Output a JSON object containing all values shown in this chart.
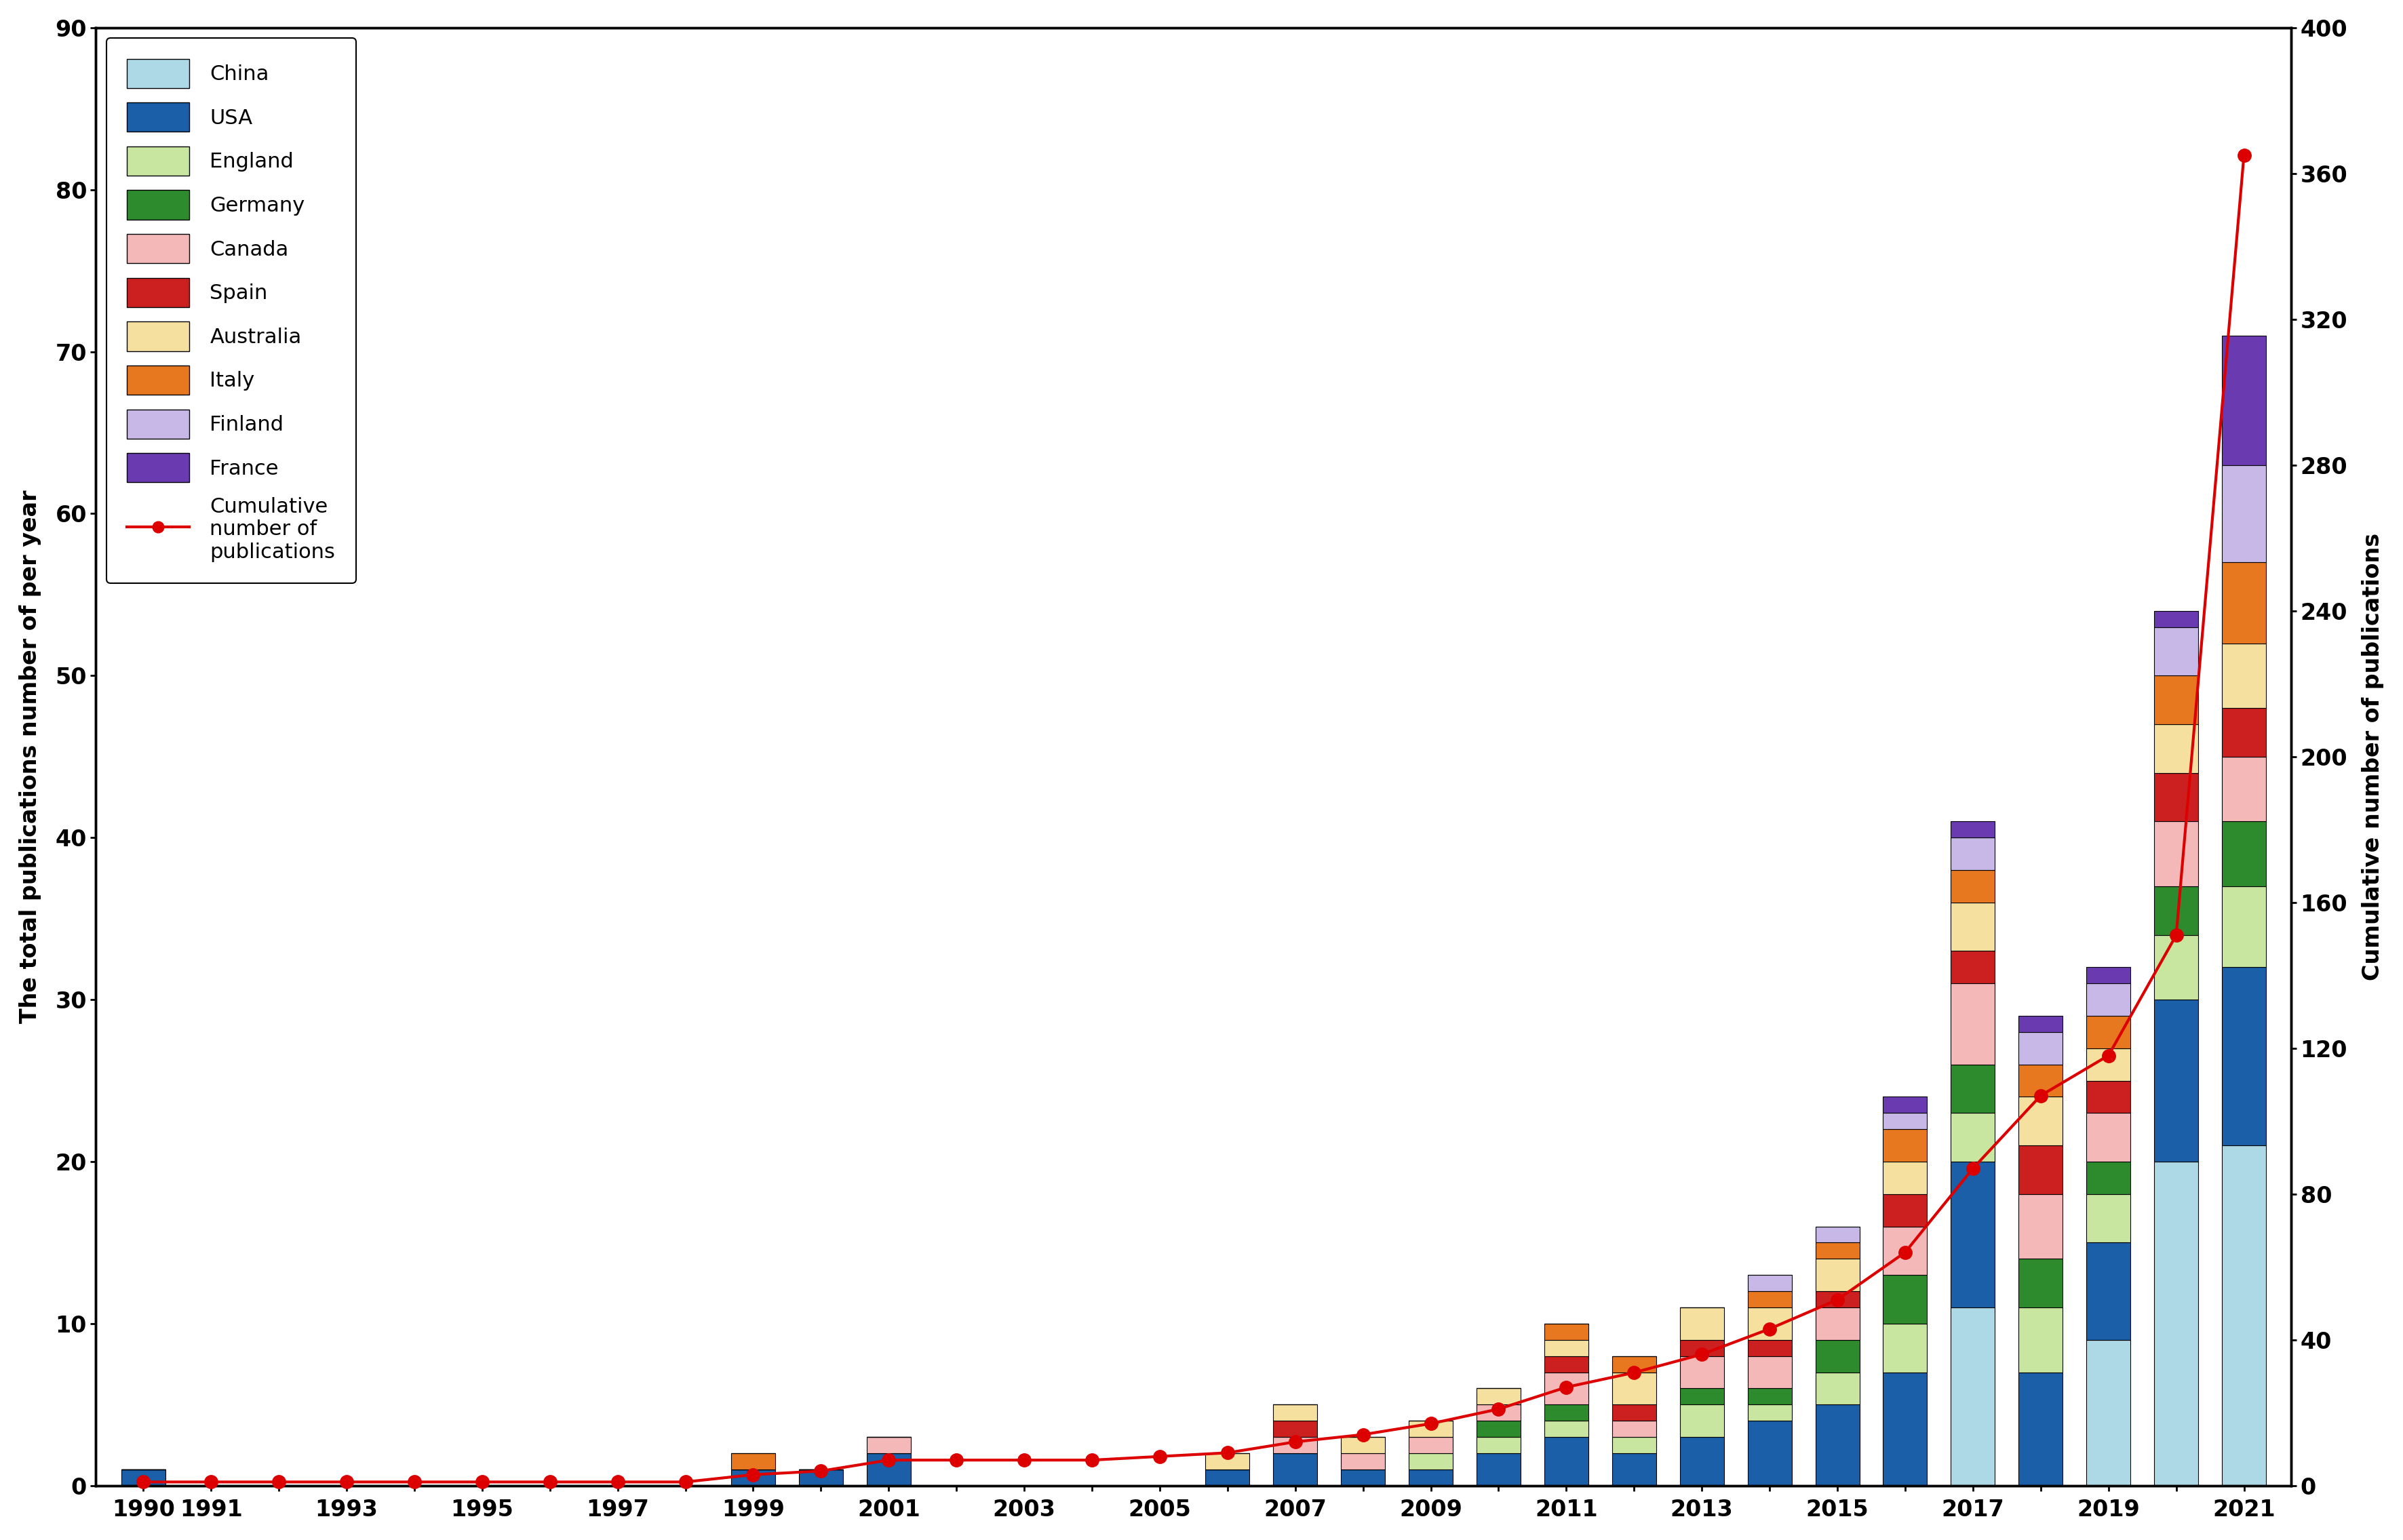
{
  "years": [
    1990,
    1991,
    1992,
    1993,
    1994,
    1995,
    1996,
    1997,
    1998,
    1999,
    2000,
    2001,
    2002,
    2003,
    2004,
    2005,
    2006,
    2007,
    2008,
    2009,
    2010,
    2011,
    2012,
    2013,
    2014,
    2015,
    2016,
    2017,
    2018,
    2019,
    2020,
    2021
  ],
  "xtick_labels": [
    "1990",
    "1991",
    "",
    "1993",
    "",
    "1995",
    "",
    "1997",
    "",
    "1999",
    "",
    "2001",
    "",
    "2003",
    "",
    "2005",
    "",
    "2007",
    "",
    "2009",
    "",
    "2011",
    "",
    "2013",
    "",
    "2015",
    "",
    "2017",
    "",
    "2019",
    "",
    "2021"
  ],
  "bar_data": {
    "China": [
      0,
      0,
      0,
      0,
      0,
      0,
      0,
      0,
      0,
      0,
      0,
      0,
      0,
      0,
      0,
      0,
      0,
      0,
      0,
      0,
      0,
      0,
      0,
      0,
      0,
      0,
      0,
      11,
      0,
      9,
      20,
      21
    ],
    "USA": [
      1,
      0,
      0,
      0,
      0,
      0,
      0,
      0,
      0,
      1,
      1,
      2,
      0,
      0,
      0,
      0,
      1,
      2,
      1,
      1,
      2,
      3,
      2,
      3,
      4,
      5,
      7,
      9,
      7,
      6,
      10,
      11
    ],
    "England": [
      0,
      0,
      0,
      0,
      0,
      0,
      0,
      0,
      0,
      0,
      0,
      0,
      0,
      0,
      0,
      0,
      0,
      0,
      0,
      1,
      1,
      1,
      1,
      2,
      1,
      2,
      3,
      3,
      4,
      3,
      4,
      5
    ],
    "Germany": [
      0,
      0,
      0,
      0,
      0,
      0,
      0,
      0,
      0,
      0,
      0,
      0,
      0,
      0,
      0,
      0,
      0,
      0,
      0,
      0,
      1,
      1,
      0,
      1,
      1,
      2,
      3,
      3,
      3,
      2,
      3,
      4
    ],
    "Canada": [
      0,
      0,
      0,
      0,
      0,
      0,
      0,
      0,
      0,
      0,
      0,
      1,
      0,
      0,
      0,
      0,
      0,
      1,
      1,
      1,
      1,
      2,
      1,
      2,
      2,
      2,
      3,
      5,
      4,
      3,
      4,
      4
    ],
    "Spain": [
      0,
      0,
      0,
      0,
      0,
      0,
      0,
      0,
      0,
      0,
      0,
      0,
      0,
      0,
      0,
      0,
      0,
      1,
      0,
      0,
      0,
      1,
      1,
      1,
      1,
      1,
      2,
      2,
      3,
      2,
      3,
      3
    ],
    "Australia": [
      0,
      0,
      0,
      0,
      0,
      0,
      0,
      0,
      0,
      0,
      0,
      0,
      0,
      0,
      0,
      0,
      1,
      1,
      1,
      1,
      1,
      1,
      2,
      2,
      2,
      2,
      2,
      3,
      3,
      2,
      3,
      4
    ],
    "Italy": [
      0,
      0,
      0,
      0,
      0,
      0,
      0,
      0,
      0,
      1,
      0,
      0,
      0,
      0,
      0,
      0,
      0,
      0,
      0,
      0,
      0,
      1,
      1,
      0,
      1,
      1,
      2,
      2,
      2,
      2,
      3,
      5
    ],
    "Finland": [
      0,
      0,
      0,
      0,
      0,
      0,
      0,
      0,
      0,
      0,
      0,
      0,
      0,
      0,
      0,
      0,
      0,
      0,
      0,
      0,
      0,
      0,
      0,
      0,
      1,
      1,
      1,
      2,
      2,
      2,
      3,
      6
    ],
    "France": [
      0,
      0,
      0,
      0,
      0,
      0,
      0,
      0,
      0,
      0,
      0,
      0,
      0,
      0,
      0,
      0,
      0,
      0,
      0,
      0,
      0,
      0,
      0,
      0,
      0,
      0,
      1,
      1,
      1,
      1,
      1,
      8
    ]
  },
  "cumulative": [
    1,
    1,
    1,
    1,
    1,
    1,
    1,
    1,
    1,
    3,
    4,
    7,
    7,
    7,
    7,
    8,
    9,
    12,
    14,
    17,
    21,
    27,
    31,
    36,
    43,
    51,
    64,
    87,
    107,
    118,
    151,
    365
  ],
  "colors": {
    "China": "#add8e6",
    "USA": "#1a5fa8",
    "England": "#c8e6a0",
    "Germany": "#2d8b2d",
    "Canada": "#f5b8b8",
    "Spain": "#cc2020",
    "Australia": "#f5e0a0",
    "Italy": "#e87820",
    "Finland": "#c8b8e8",
    "France": "#6a3ab0"
  },
  "ylim_left": [
    0,
    90
  ],
  "ylim_right": [
    0,
    400
  ],
  "yticks_left": [
    0,
    10,
    20,
    30,
    40,
    50,
    60,
    70,
    80,
    90
  ],
  "yticks_right": [
    0,
    40,
    80,
    120,
    160,
    200,
    240,
    280,
    320,
    360,
    400
  ],
  "ylabel_left": "The total publications number of per year",
  "ylabel_right": "Cumulative number of publications",
  "line_color": "#dd0000",
  "line_label": "Cumulative\nnumber of\npublications"
}
